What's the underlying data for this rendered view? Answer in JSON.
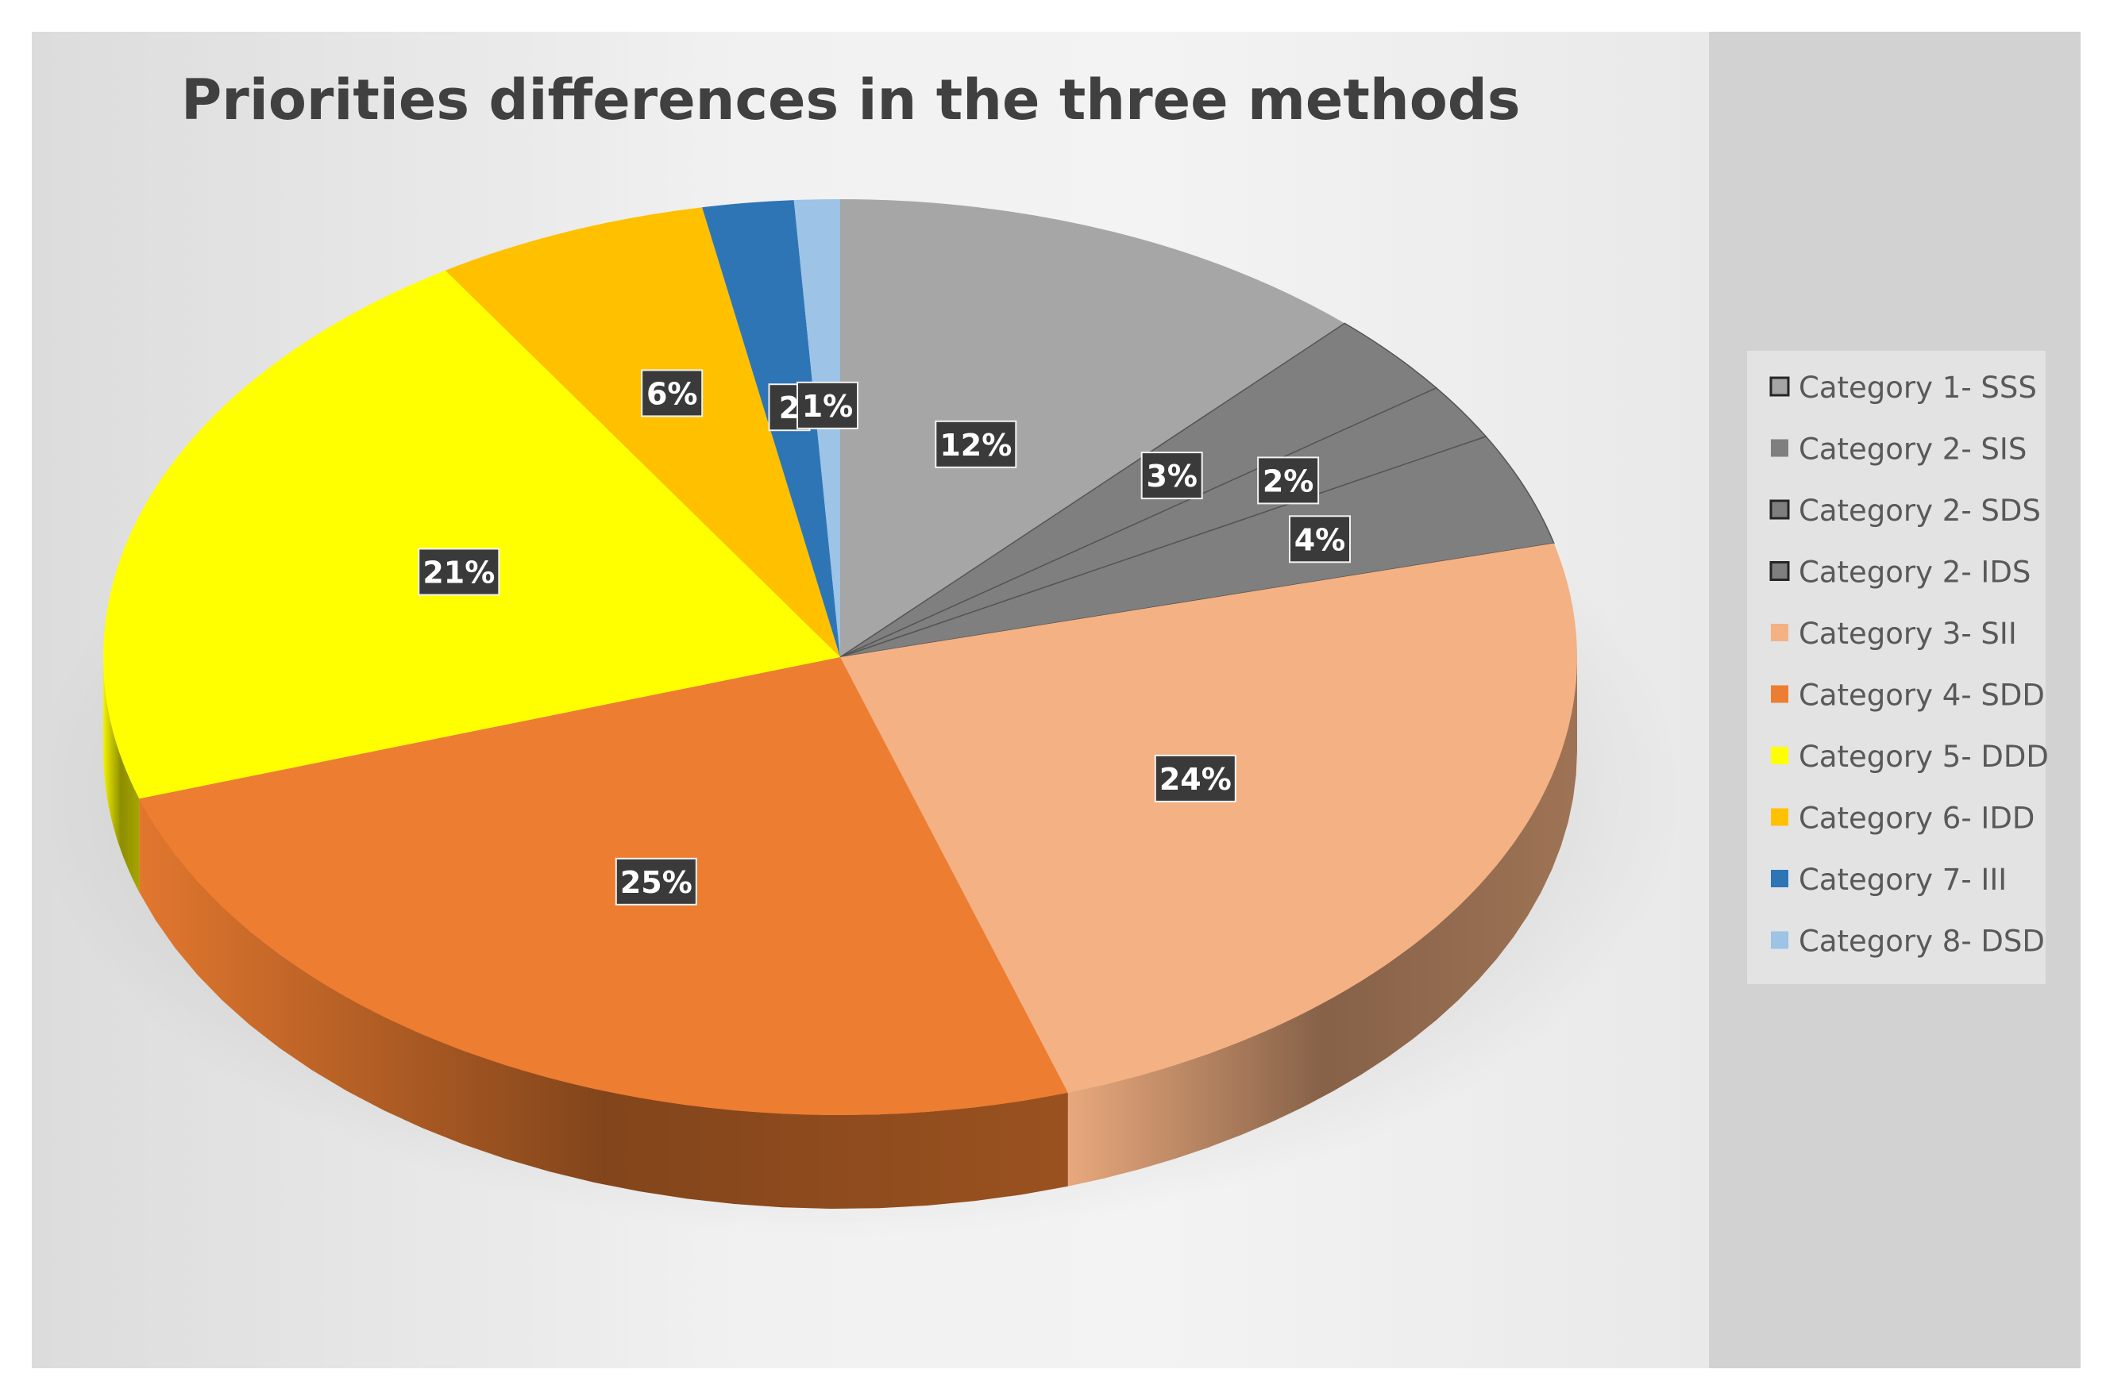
{
  "chart_data": {
    "type": "pie",
    "title": "Priorities differences in the three methods",
    "legend_position": "right",
    "categories": [
      "Category 1- SSS",
      "Category 2- SIS",
      "Category 2- SDS",
      "Category 2- IDS",
      "Category 3- SII",
      "Category 4- SDD",
      "Category 5- DDD",
      "Category 6- IDD",
      "Category 7- III",
      "Category 8- DSD"
    ],
    "values": [
      12,
      3,
      2,
      4,
      24,
      25,
      21,
      6,
      2,
      1
    ],
    "labels": [
      "12%",
      "3%",
      "2%",
      "4%",
      "24%",
      "25%",
      "21%",
      "6%",
      "2",
      "1%"
    ],
    "colors": [
      "#a6a6a6",
      "#7f7f7f",
      "#7f7f7f",
      "#7f7f7f",
      "#f4b183",
      "#ed7d31",
      "#ffff00",
      "#ffc000",
      "#2e75b6",
      "#9dc3e6"
    ],
    "unit": "%"
  }
}
